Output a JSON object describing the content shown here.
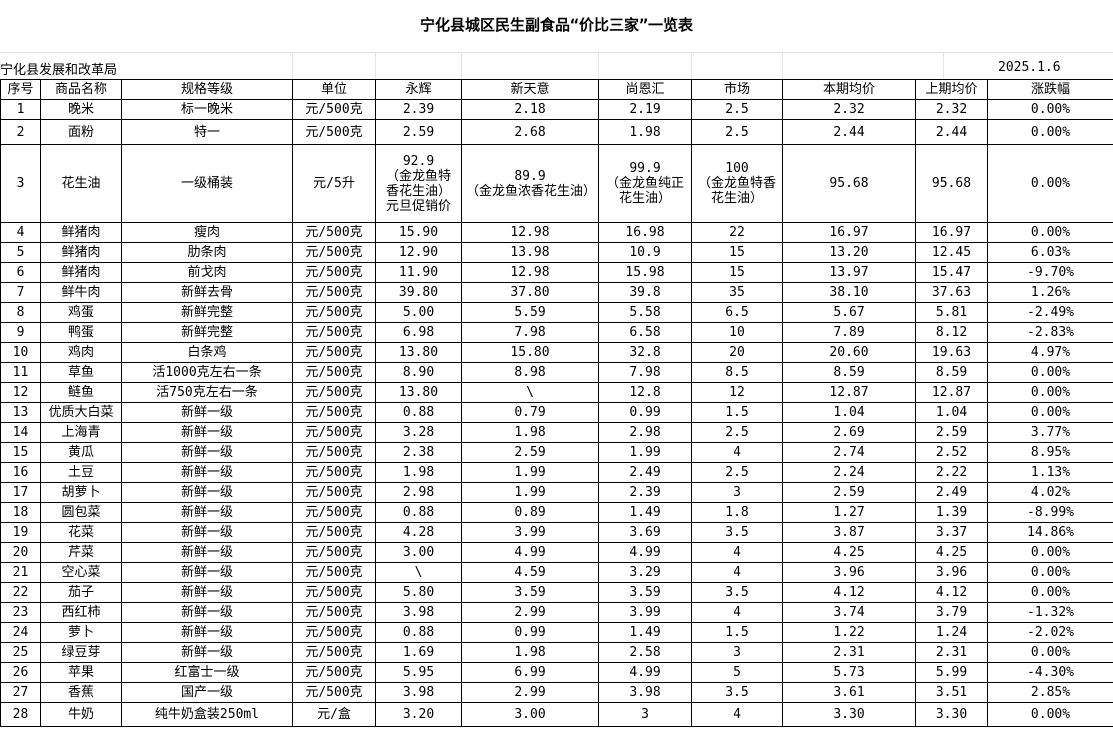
{
  "title": "宁化县城区民生副食品“价比三家”一览表",
  "org": "宁化县发展和改革局",
  "date": "2025.1.6",
  "headers": [
    "序号",
    "商品名称",
    "规格等级",
    "单位",
    "永辉",
    "新天意",
    "尚恩汇",
    "市场",
    "本期均价",
    "上期均价",
    "涨跌幅"
  ],
  "rows": [
    [
      "1",
      "晚米",
      "标一晚米",
      "元/500克",
      "2.39",
      "2.18",
      "2.19",
      "2.5",
      "2.32",
      "2.32",
      "0.00%"
    ],
    [
      "2",
      "面粉",
      "特一",
      "元/500克",
      "2.59",
      "2.68",
      "1.98",
      "2.5",
      "2.44",
      "2.44",
      "0.00%"
    ],
    [
      "3",
      "花生油",
      "一级桶装",
      "元/5升",
      "92.9\n（金龙鱼特香花生油）\n元旦促销价",
      "89.9\n（金龙鱼浓香花生油）",
      "99.9\n（金龙鱼纯正花生油）",
      "100\n（金龙鱼特香花生油）",
      "95.68",
      "95.68",
      "0.00%"
    ],
    [
      "4",
      "鲜猪肉",
      "瘦肉",
      "元/500克",
      "15.90",
      "12.98",
      "16.98",
      "22",
      "16.97",
      "16.97",
      "0.00%"
    ],
    [
      "5",
      "鲜猪肉",
      "肋条肉",
      "元/500克",
      "12.90",
      "13.98",
      "10.9",
      "15",
      "13.20",
      "12.45",
      "6.03%"
    ],
    [
      "6",
      "鲜猪肉",
      "前戈肉",
      "元/500克",
      "11.90",
      "12.98",
      "15.98",
      "15",
      "13.97",
      "15.47",
      "-9.70%"
    ],
    [
      "7",
      "鲜牛肉",
      "新鲜去骨",
      "元/500克",
      "39.80",
      "37.80",
      "39.8",
      "35",
      "38.10",
      "37.63",
      "1.26%"
    ],
    [
      "8",
      "鸡蛋",
      "新鲜完整",
      "元/500克",
      "5.00",
      "5.59",
      "5.58",
      "6.5",
      "5.67",
      "5.81",
      "-2.49%"
    ],
    [
      "9",
      "鸭蛋",
      "新鲜完整",
      "元/500克",
      "6.98",
      "7.98",
      "6.58",
      "10",
      "7.89",
      "8.12",
      "-2.83%"
    ],
    [
      "10",
      "鸡肉",
      "白条鸡",
      "元/500克",
      "13.80",
      "15.80",
      "32.8",
      "20",
      "20.60",
      "19.63",
      "4.97%"
    ],
    [
      "11",
      "草鱼",
      "活1000克左右一条",
      "元/500克",
      "8.90",
      "8.98",
      "7.98",
      "8.5",
      "8.59",
      "8.59",
      "0.00%"
    ],
    [
      "12",
      "鲢鱼",
      "活750克左右一条",
      "元/500克",
      "13.80",
      "\\",
      "12.8",
      "12",
      "12.87",
      "12.87",
      "0.00%"
    ],
    [
      "13",
      "优质大白菜",
      "新鲜一级",
      "元/500克",
      "0.88",
      "0.79",
      "0.99",
      "1.5",
      "1.04",
      "1.04",
      "0.00%"
    ],
    [
      "14",
      "上海青",
      "新鲜一级",
      "元/500克",
      "3.28",
      "1.98",
      "2.98",
      "2.5",
      "2.69",
      "2.59",
      "3.77%"
    ],
    [
      "15",
      "黄瓜",
      "新鲜一级",
      "元/500克",
      "2.38",
      "2.59",
      "1.99",
      "4",
      "2.74",
      "2.52",
      "8.95%"
    ],
    [
      "16",
      "土豆",
      "新鲜一级",
      "元/500克",
      "1.98",
      "1.99",
      "2.49",
      "2.5",
      "2.24",
      "2.22",
      "1.13%"
    ],
    [
      "17",
      "胡萝卜",
      "新鲜一级",
      "元/500克",
      "2.98",
      "1.99",
      "2.39",
      "3",
      "2.59",
      "2.49",
      "4.02%"
    ],
    [
      "18",
      "圆包菜",
      "新鲜一级",
      "元/500克",
      "0.88",
      "0.89",
      "1.49",
      "1.8",
      "1.27",
      "1.39",
      "-8.99%"
    ],
    [
      "19",
      "花菜",
      "新鲜一级",
      "元/500克",
      "4.28",
      "3.99",
      "3.69",
      "3.5",
      "3.87",
      "3.37",
      "14.86%"
    ],
    [
      "20",
      "芹菜",
      "新鲜一级",
      "元/500克",
      "3.00",
      "4.99",
      "4.99",
      "4",
      "4.25",
      "4.25",
      "0.00%"
    ],
    [
      "21",
      "空心菜",
      "新鲜一级",
      "元/500克",
      "\\",
      "4.59",
      "3.29",
      "4",
      "3.96",
      "3.96",
      "0.00%"
    ],
    [
      "22",
      "茄子",
      "新鲜一级",
      "元/500克",
      "5.80",
      "3.59",
      "3.59",
      "3.5",
      "4.12",
      "4.12",
      "0.00%"
    ],
    [
      "23",
      "西红柿",
      "新鲜一级",
      "元/500克",
      "3.98",
      "2.99",
      "3.99",
      "4",
      "3.74",
      "3.79",
      "-1.32%"
    ],
    [
      "24",
      "萝卜",
      "新鲜一级",
      "元/500克",
      "0.88",
      "0.99",
      "1.49",
      "1.5",
      "1.22",
      "1.24",
      "-2.02%"
    ],
    [
      "25",
      "绿豆芽",
      "新鲜一级",
      "元/500克",
      "1.69",
      "1.98",
      "2.58",
      "3",
      "2.31",
      "2.31",
      "0.00%"
    ],
    [
      "26",
      "苹果",
      "红富士一级",
      "元/500克",
      "5.95",
      "6.99",
      "4.99",
      "5",
      "5.73",
      "5.99",
      "-4.30%"
    ],
    [
      "27",
      "香蕉",
      "国产一级",
      "元/500克",
      "3.98",
      "2.99",
      "3.98",
      "3.5",
      "3.61",
      "3.51",
      "2.85%"
    ],
    [
      "28",
      "牛奶",
      "纯牛奶盒装250ml",
      "元/盒",
      "3.20",
      "3.00",
      "3",
      "4",
      "3.30",
      "3.30",
      "0.00%"
    ]
  ]
}
